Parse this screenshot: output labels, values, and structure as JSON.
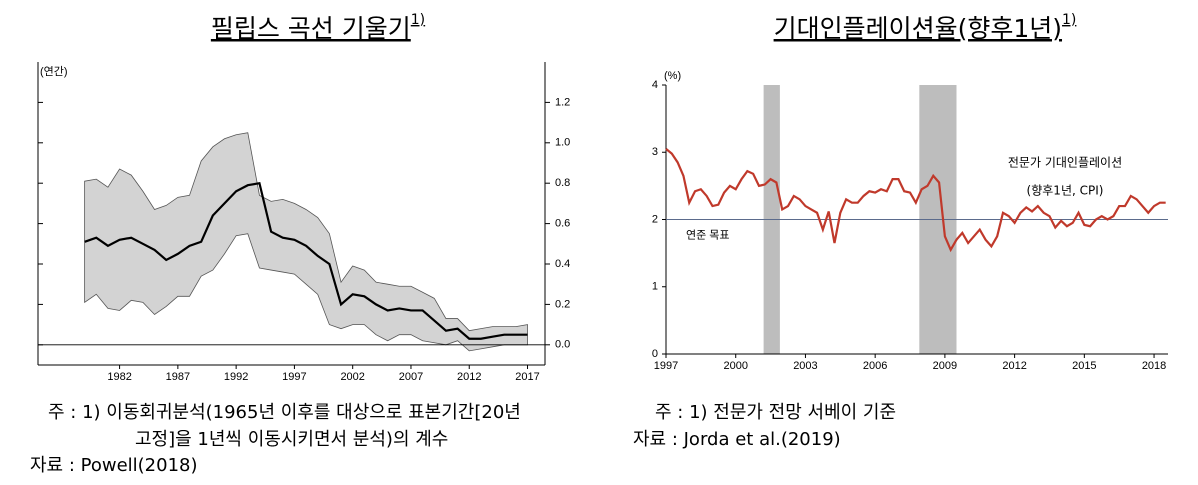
{
  "chart_data": [
    {
      "type": "line",
      "title": "필립스 곡선 기울기",
      "title_note": "1)",
      "y_label": "(연간)",
      "x": [
        1979,
        1980,
        1981,
        1982,
        1983,
        1984,
        1985,
        1986,
        1987,
        1988,
        1989,
        1990,
        1991,
        1992,
        1993,
        1994,
        1995,
        1996,
        1997,
        1998,
        1999,
        2000,
        2001,
        2002,
        2003,
        2004,
        2005,
        2006,
        2007,
        2008,
        2009,
        2010,
        2011,
        2012,
        2013,
        2014,
        2015,
        2016,
        2017
      ],
      "values": [
        0.51,
        0.53,
        0.49,
        0.52,
        0.53,
        0.5,
        0.47,
        0.42,
        0.45,
        0.49,
        0.51,
        0.64,
        0.7,
        0.76,
        0.79,
        0.8,
        0.56,
        0.53,
        0.52,
        0.49,
        0.44,
        0.4,
        0.2,
        0.25,
        0.24,
        0.2,
        0.17,
        0.18,
        0.17,
        0.17,
        0.12,
        0.07,
        0.08,
        0.03,
        0.03,
        0.04,
        0.05,
        0.05,
        0.05
      ],
      "upper": [
        0.81,
        0.82,
        0.78,
        0.87,
        0.84,
        0.76,
        0.67,
        0.69,
        0.73,
        0.74,
        0.91,
        0.98,
        1.02,
        1.04,
        1.05,
        0.74,
        0.71,
        0.72,
        0.7,
        0.67,
        0.63,
        0.55,
        0.31,
        0.39,
        0.37,
        0.31,
        0.3,
        0.29,
        0.29,
        0.26,
        0.23,
        0.13,
        0.13,
        0.07,
        0.08,
        0.09,
        0.09,
        0.09,
        0.1
      ],
      "lower": [
        0.21,
        0.25,
        0.18,
        0.17,
        0.22,
        0.21,
        0.15,
        0.19,
        0.24,
        0.24,
        0.34,
        0.37,
        0.45,
        0.54,
        0.55,
        0.38,
        0.37,
        0.36,
        0.35,
        0.3,
        0.25,
        0.1,
        0.08,
        0.1,
        0.1,
        0.05,
        0.02,
        0.05,
        0.05,
        0.02,
        0.01,
        0.0,
        0.02,
        -0.03,
        -0.02,
        -0.01,
        0.0,
        0.0,
        0.0
      ],
      "color": "#000000",
      "band_color": "#d3d3d3",
      "xlim": [
        1975,
        2018.5
      ],
      "xticks": [
        1982,
        1987,
        1992,
        1997,
        2002,
        2007,
        2012,
        2017
      ],
      "ylim": [
        -0.1,
        1.4
      ],
      "yticks": [
        {
          "value": 0,
          "label": "0.0"
        },
        0.2,
        0.4,
        0.6,
        0.8,
        {
          "value": 1,
          "label": "1.0"
        },
        1.2
      ],
      "notes": [
        "주 : 1) 이동회귀분석(1965년 이후를 대상으로 표본기간[20년",
        "고정]을 1년씩 이동시키면서 분석)의 계수"
      ],
      "source": "자료 : Powell(2018)"
    },
    {
      "type": "line",
      "title": "기대인플레이션율(향후1년)",
      "title_note": "1)",
      "y_label": "(%)",
      "x": [
        1997,
        1997.25,
        1997.5,
        1997.75,
        1998,
        1998.25,
        1998.5,
        1998.75,
        1999,
        1999.25,
        1999.5,
        1999.75,
        2000,
        2000.25,
        2000.5,
        2000.75,
        2001,
        2001.25,
        2001.5,
        2001.75,
        2002,
        2002.25,
        2002.5,
        2002.75,
        2003,
        2003.25,
        2003.5,
        2003.75,
        2004,
        2004.25,
        2004.5,
        2004.75,
        2005,
        2005.25,
        2005.5,
        2005.75,
        2006,
        2006.25,
        2006.5,
        2006.75,
        2007,
        2007.25,
        2007.5,
        2007.75,
        2008,
        2008.25,
        2008.5,
        2008.75,
        2009,
        2009.25,
        2009.5,
        2009.75,
        2010,
        2010.25,
        2010.5,
        2010.75,
        2011,
        2011.25,
        2011.5,
        2011.75,
        2012,
        2012.25,
        2012.5,
        2012.75,
        2013,
        2013.25,
        2013.5,
        2013.75,
        2014,
        2014.25,
        2014.5,
        2014.75,
        2015,
        2015.25,
        2015.5,
        2015.75,
        2016,
        2016.25,
        2016.5,
        2016.75,
        2017,
        2017.25,
        2017.5,
        2017.75,
        2018,
        2018.25,
        2018.5
      ],
      "values": [
        3.05,
        2.98,
        2.85,
        2.65,
        2.25,
        2.42,
        2.45,
        2.35,
        2.2,
        2.22,
        2.4,
        2.5,
        2.45,
        2.6,
        2.72,
        2.68,
        2.5,
        2.52,
        2.6,
        2.55,
        2.15,
        2.2,
        2.35,
        2.3,
        2.2,
        2.15,
        2.1,
        1.85,
        2.12,
        1.65,
        2.1,
        2.3,
        2.25,
        2.25,
        2.35,
        2.42,
        2.4,
        2.45,
        2.42,
        2.6,
        2.6,
        2.42,
        2.4,
        2.25,
        2.45,
        2.5,
        2.65,
        2.55,
        1.75,
        1.55,
        1.7,
        1.8,
        1.65,
        1.75,
        1.85,
        1.7,
        1.6,
        1.75,
        2.1,
        2.05,
        1.95,
        2.1,
        2.18,
        2.12,
        2.2,
        2.1,
        2.05,
        1.88,
        1.98,
        1.9,
        1.95,
        2.1,
        1.92,
        1.9,
        2.0,
        2.05,
        2.0,
        2.05,
        2.2,
        2.2,
        2.35,
        2.3,
        2.2,
        2.1,
        2.2,
        2.25,
        2.25
      ],
      "color": "#c0392b",
      "shade_color": "#bdbdbd",
      "shaded_periods": [
        [
          2001.2,
          2001.9
        ],
        [
          2007.9,
          2009.5
        ]
      ],
      "reference_line": {
        "value": 2,
        "label": "연준 목표"
      },
      "annotation": [
        "전문가 기대인플레이션",
        "(향후1년, CPI)"
      ],
      "xlim": [
        1997,
        2018.6
      ],
      "xticks": [
        1997,
        2000,
        2003,
        2006,
        2009,
        2012,
        2015,
        2018
      ],
      "ylim": [
        0,
        4
      ],
      "yticks": [
        0,
        1,
        2,
        3,
        4
      ],
      "notes": [
        "주 : 1) 전문가 전망 서베이 기준"
      ],
      "source": "자료 : Jorda et al.(2019)"
    }
  ]
}
